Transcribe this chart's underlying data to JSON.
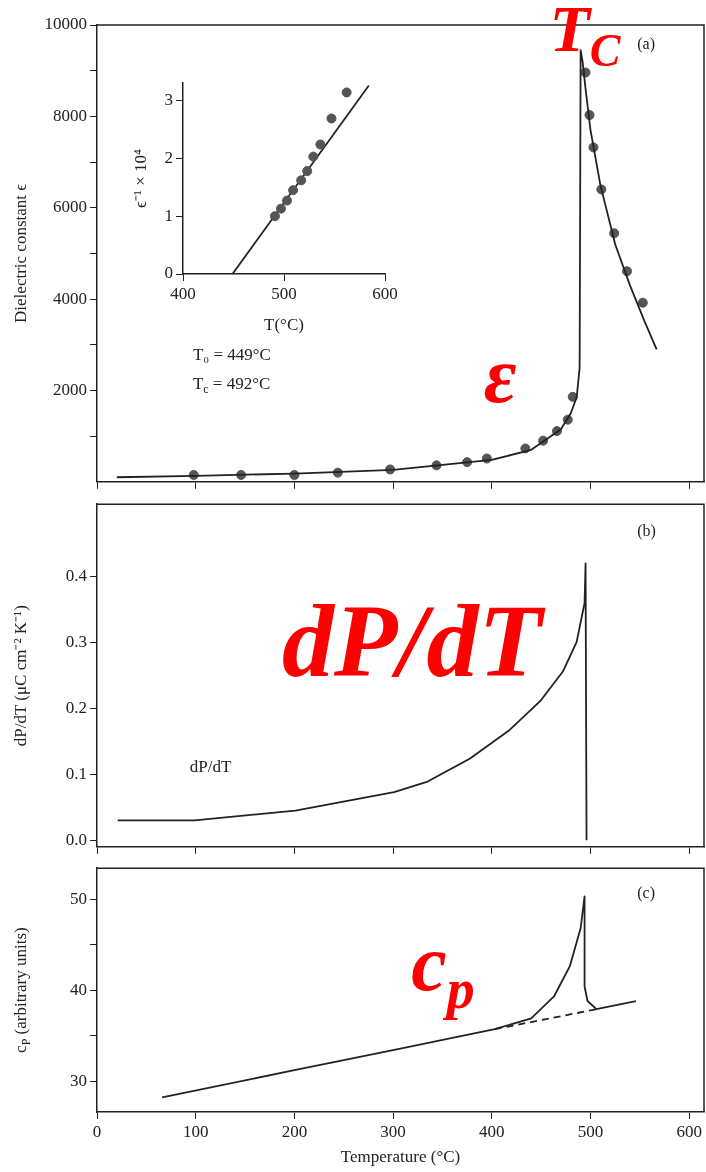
{
  "chart_data": [
    {
      "type": "line",
      "ylabel": "Dielectric constant ϵ",
      "xlim": [
        0,
        615
      ],
      "xticks": [
        0,
        100,
        200,
        300,
        400,
        500,
        600
      ],
      "ylim": [
        0,
        10000
      ],
      "yticks": [
        {
          "value": 1000,
          "label": null
        },
        2000,
        {
          "value": 3000,
          "label": null
        },
        4000,
        {
          "value": 5000,
          "label": null
        },
        6000,
        {
          "value": 7000,
          "label": null
        },
        8000,
        {
          "value": 9000,
          "label": null
        },
        10000
      ],
      "tick_labels": "y",
      "series": [
        {
          "color": "#222222",
          "x": [
            20,
            100,
            200,
            300,
            400,
            440,
            470,
            480,
            486,
            489,
            490,
            492,
            495,
            500,
            510,
            525,
            540,
            555,
            567
          ],
          "values": [
            100,
            130,
            180,
            260,
            480,
            700,
            1150,
            1500,
            1850,
            2500,
            9450,
            9200,
            8600,
            7700,
            6500,
            5200,
            4300,
            3500,
            2900
          ]
        },
        {
          "type": "scatter",
          "color": "#555555",
          "marker": "circle",
          "x": [
            98,
            146,
            200,
            244,
            297,
            344,
            375,
            395,
            434,
            452,
            466,
            477,
            482,
            495,
            499,
            503,
            511,
            524,
            537,
            553
          ],
          "values": [
            150,
            150,
            150,
            200,
            270,
            360,
            430,
            510,
            730,
            900,
            1110,
            1360,
            1860,
            8960,
            8030,
            7320,
            6400,
            5440,
            4610,
            3920
          ]
        }
      ],
      "annotations": [
        "(a)",
        "T₀ = 449°C",
        "T$_{c}$ = 492°C",
        "T$_{C}$",
        "ε"
      ]
    },
    {
      "type": "scatter",
      "xlabel": "T(°C)",
      "ylabel": "ϵ⁻¹ × 10⁴",
      "xlim": [
        400,
        600
      ],
      "xticks": [
        400,
        500,
        600
      ],
      "ylim": [
        0,
        3.3
      ],
      "yticks": [
        0,
        1,
        2,
        3
      ],
      "series": [
        {
          "color": "#555555",
          "marker": "circle",
          "x": [
            491,
            497,
            503,
            509,
            517,
            523,
            529,
            536,
            547,
            562
          ],
          "values": [
            1.0,
            1.13,
            1.27,
            1.45,
            1.62,
            1.78,
            2.03,
            2.24,
            2.69,
            3.14
          ]
        },
        {
          "type": "line",
          "color": "#222222",
          "x": [
            449,
            584
          ],
          "values": [
            0,
            3.26
          ]
        }
      ]
    },
    {
      "type": "line",
      "ylabel": "dP/dT (μC cm⁻² K⁻¹)",
      "xlim": [
        0,
        615
      ],
      "xticks": [
        0,
        100,
        200,
        300,
        400,
        500,
        600
      ],
      "ylim": [
        -0.01,
        0.51
      ],
      "yticks": [
        {
          "value": 0,
          "label": "0.0"
        },
        0.1,
        0.2,
        0.3,
        0.4
      ],
      "tick_labels": "y",
      "series": [
        {
          "color": "#222222",
          "x": [
            21,
            99,
            201,
            301,
            335,
            378,
            417,
            449,
            472,
            486,
            494,
            495,
            496
          ],
          "values": [
            0.03,
            0.03,
            0.045,
            0.073,
            0.089,
            0.124,
            0.166,
            0.211,
            0.256,
            0.301,
            0.36,
            0.42,
            0
          ]
        }
      ],
      "annotations": [
        "(b)",
        "dP/dT",
        "dP/dT"
      ]
    },
    {
      "type": "line",
      "xlabel": "Temperature (°C)",
      "ylabel": "c$_{P}$ (arbitrary units)",
      "xlim": [
        0,
        615
      ],
      "xticks": [
        0,
        100,
        200,
        300,
        400,
        500,
        600
      ],
      "ylim": [
        26.6,
        53.4
      ],
      "yticks": [
        30,
        {
          "value": 35,
          "label": null
        },
        40,
        {
          "value": 45,
          "label": null
        },
        50
      ],
      "series": [
        {
          "color": "#222222",
          "x": [
            66,
            200,
            300,
            403,
            440,
            463,
            479,
            490,
            494,
            494,
            497,
            506,
            546
          ],
          "values": [
            28.2,
            31.2,
            33.4,
            35.7,
            36.9,
            39.3,
            42.6,
            46.8,
            50.3,
            40.4,
            38.8,
            37.9,
            38.8
          ]
        },
        {
          "color": "#222222",
          "line_style": "dashed",
          "x": [
            403,
            506
          ],
          "values": [
            35.7,
            37.9
          ]
        }
      ],
      "annotations": [
        "(c)",
        "c$_{p}$"
      ]
    }
  ]
}
